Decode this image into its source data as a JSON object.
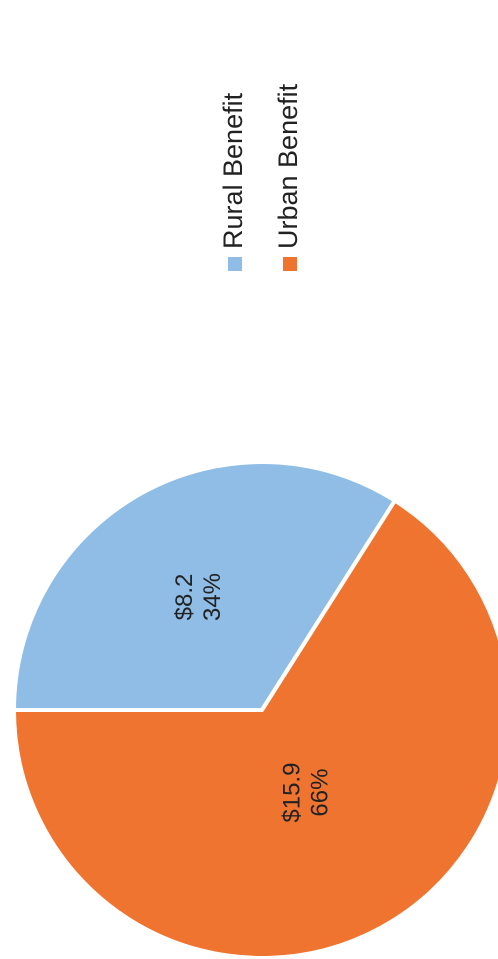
{
  "chart_data": {
    "type": "pie",
    "categories": [
      "Rural Benefit",
      "Urban Benefit"
    ],
    "values": [
      8.2,
      15.9
    ],
    "value_labels": [
      "$8.2",
      "$15.9"
    ],
    "percentages": [
      34,
      66
    ],
    "percentage_labels": [
      "34%",
      "66%"
    ],
    "colors": [
      "#8fbde6",
      "#ef7430"
    ],
    "legend": "right"
  }
}
